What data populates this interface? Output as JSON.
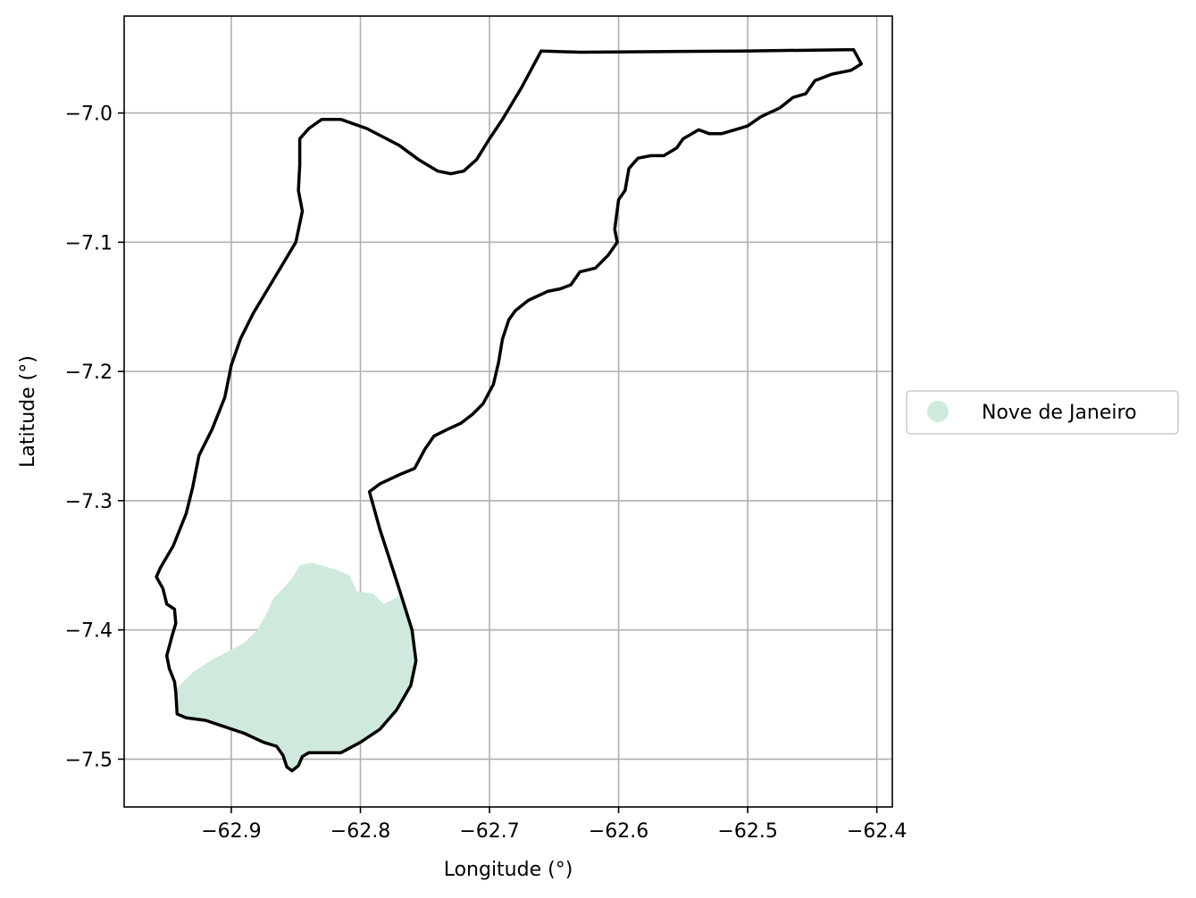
{
  "chart_data": {
    "type": "map",
    "xlabel": "Longitude (°)",
    "ylabel": "Latitude (°)",
    "xlim": [
      -62.983,
      -62.388
    ],
    "ylim": [
      -7.537,
      -6.925
    ],
    "xticks": [
      -62.9,
      -62.8,
      -62.7,
      -62.6,
      -62.5,
      -62.4
    ],
    "xtick_labels": [
      "−62.9",
      "−62.8",
      "−62.7",
      "−62.6",
      "−62.5",
      "−62.4"
    ],
    "yticks": [
      -7.0,
      -7.1,
      -7.2,
      -7.3,
      -7.4,
      -7.5
    ],
    "ytick_labels": [
      "−7.0",
      "−7.1",
      "−7.2",
      "−7.3",
      "−7.4",
      "−7.5"
    ],
    "grid": true,
    "legend": {
      "placement": "right-outside",
      "entries": [
        {
          "label": "Nove de Janeiro",
          "color": "#cfeadc"
        }
      ]
    },
    "boundary": {
      "color": "#000000",
      "coordinates": [
        [
          -62.66,
          -6.952
        ],
        [
          -62.63,
          -6.953
        ],
        [
          -62.5,
          -6.952
        ],
        [
          -62.418,
          -6.951
        ],
        [
          -62.412,
          -6.962
        ],
        [
          -62.42,
          -6.967
        ],
        [
          -62.435,
          -6.97
        ],
        [
          -62.448,
          -6.975
        ],
        [
          -62.455,
          -6.985
        ],
        [
          -62.465,
          -6.988
        ],
        [
          -62.475,
          -6.996
        ],
        [
          -62.49,
          -7.003
        ],
        [
          -62.5,
          -7.01
        ],
        [
          -62.51,
          -7.013
        ],
        [
          -62.52,
          -7.016
        ],
        [
          -62.53,
          -7.016
        ],
        [
          -62.538,
          -7.013
        ],
        [
          -62.55,
          -7.02
        ],
        [
          -62.555,
          -7.027
        ],
        [
          -62.565,
          -7.033
        ],
        [
          -62.575,
          -7.033
        ],
        [
          -62.585,
          -7.035
        ],
        [
          -62.592,
          -7.043
        ],
        [
          -62.595,
          -7.06
        ],
        [
          -62.6,
          -7.067
        ],
        [
          -62.603,
          -7.09
        ],
        [
          -62.601,
          -7.1
        ],
        [
          -62.608,
          -7.11
        ],
        [
          -62.618,
          -7.12
        ],
        [
          -62.63,
          -7.123
        ],
        [
          -62.637,
          -7.133
        ],
        [
          -62.645,
          -7.136
        ],
        [
          -62.655,
          -7.138
        ],
        [
          -62.67,
          -7.145
        ],
        [
          -62.68,
          -7.153
        ],
        [
          -62.685,
          -7.16
        ],
        [
          -62.69,
          -7.175
        ],
        [
          -62.693,
          -7.193
        ],
        [
          -62.697,
          -7.21
        ],
        [
          -62.705,
          -7.225
        ],
        [
          -62.713,
          -7.233
        ],
        [
          -62.722,
          -7.24
        ],
        [
          -62.733,
          -7.245
        ],
        [
          -62.743,
          -7.25
        ],
        [
          -62.75,
          -7.26
        ],
        [
          -62.758,
          -7.275
        ],
        [
          -62.77,
          -7.28
        ],
        [
          -62.785,
          -7.287
        ],
        [
          -62.793,
          -7.293
        ],
        [
          -62.785,
          -7.322
        ],
        [
          -62.772,
          -7.362
        ],
        [
          -62.76,
          -7.4
        ],
        [
          -62.757,
          -7.424
        ],
        [
          -62.761,
          -7.443
        ],
        [
          -62.772,
          -7.462
        ],
        [
          -62.785,
          -7.477
        ],
        [
          -62.8,
          -7.487
        ],
        [
          -62.815,
          -7.495
        ],
        [
          -62.83,
          -7.495
        ],
        [
          -62.84,
          -7.495
        ],
        [
          -62.845,
          -7.498
        ],
        [
          -62.848,
          -7.505
        ],
        [
          -62.853,
          -7.509
        ],
        [
          -62.857,
          -7.506
        ],
        [
          -62.86,
          -7.497
        ],
        [
          -62.865,
          -7.49
        ],
        [
          -62.875,
          -7.487
        ],
        [
          -62.89,
          -7.48
        ],
        [
          -62.905,
          -7.475
        ],
        [
          -62.92,
          -7.47
        ],
        [
          -62.935,
          -7.468
        ],
        [
          -62.942,
          -7.465
        ],
        [
          -62.943,
          -7.448
        ],
        [
          -62.944,
          -7.44
        ],
        [
          -62.948,
          -7.43
        ],
        [
          -62.95,
          -7.42
        ],
        [
          -62.946,
          -7.405
        ],
        [
          -62.943,
          -7.395
        ],
        [
          -62.944,
          -7.384
        ],
        [
          -62.95,
          -7.38
        ],
        [
          -62.953,
          -7.368
        ],
        [
          -62.958,
          -7.359
        ],
        [
          -62.955,
          -7.352
        ],
        [
          -62.945,
          -7.335
        ],
        [
          -62.935,
          -7.31
        ],
        [
          -62.93,
          -7.29
        ],
        [
          -62.925,
          -7.265
        ],
        [
          -62.915,
          -7.245
        ],
        [
          -62.905,
          -7.22
        ],
        [
          -62.9,
          -7.195
        ],
        [
          -62.893,
          -7.175
        ],
        [
          -62.883,
          -7.155
        ],
        [
          -62.865,
          -7.125
        ],
        [
          -62.85,
          -7.1
        ],
        [
          -62.845,
          -7.076
        ],
        [
          -62.848,
          -7.06
        ],
        [
          -62.847,
          -7.04
        ],
        [
          -62.847,
          -7.02
        ],
        [
          -62.84,
          -7.012
        ],
        [
          -62.83,
          -7.005
        ],
        [
          -62.815,
          -7.005
        ],
        [
          -62.795,
          -7.012
        ],
        [
          -62.77,
          -7.025
        ],
        [
          -62.755,
          -7.036
        ],
        [
          -62.74,
          -7.045
        ],
        [
          -62.73,
          -7.047
        ],
        [
          -62.72,
          -7.045
        ],
        [
          -62.71,
          -7.036
        ],
        [
          -62.7,
          -7.02
        ],
        [
          -62.69,
          -7.005
        ],
        [
          -62.675,
          -6.98
        ]
      ]
    },
    "region": {
      "name": "Nove de Janeiro",
      "color": "#cfeadc",
      "coordinates": [
        [
          -62.943,
          -7.446
        ],
        [
          -62.93,
          -7.433
        ],
        [
          -62.915,
          -7.423
        ],
        [
          -62.903,
          -7.417
        ],
        [
          -62.89,
          -7.41
        ],
        [
          -62.88,
          -7.4
        ],
        [
          -62.873,
          -7.388
        ],
        [
          -62.867,
          -7.375
        ],
        [
          -62.86,
          -7.368
        ],
        [
          -62.853,
          -7.36
        ],
        [
          -62.847,
          -7.35
        ],
        [
          -62.838,
          -7.348
        ],
        [
          -62.82,
          -7.353
        ],
        [
          -62.808,
          -7.358
        ],
        [
          -62.803,
          -7.37
        ],
        [
          -62.79,
          -7.372
        ],
        [
          -62.782,
          -7.38
        ],
        [
          -62.77,
          -7.374
        ],
        [
          -62.76,
          -7.4
        ],
        [
          -62.757,
          -7.424
        ],
        [
          -62.761,
          -7.443
        ],
        [
          -62.772,
          -7.462
        ],
        [
          -62.785,
          -7.477
        ],
        [
          -62.8,
          -7.487
        ],
        [
          -62.815,
          -7.495
        ],
        [
          -62.83,
          -7.495
        ],
        [
          -62.84,
          -7.495
        ],
        [
          -62.845,
          -7.498
        ],
        [
          -62.848,
          -7.505
        ],
        [
          -62.853,
          -7.509
        ],
        [
          -62.857,
          -7.506
        ],
        [
          -62.86,
          -7.497
        ],
        [
          -62.865,
          -7.49
        ],
        [
          -62.875,
          -7.487
        ],
        [
          -62.89,
          -7.48
        ],
        [
          -62.905,
          -7.475
        ],
        [
          -62.92,
          -7.47
        ],
        [
          -62.935,
          -7.468
        ],
        [
          -62.942,
          -7.465
        ]
      ]
    }
  }
}
